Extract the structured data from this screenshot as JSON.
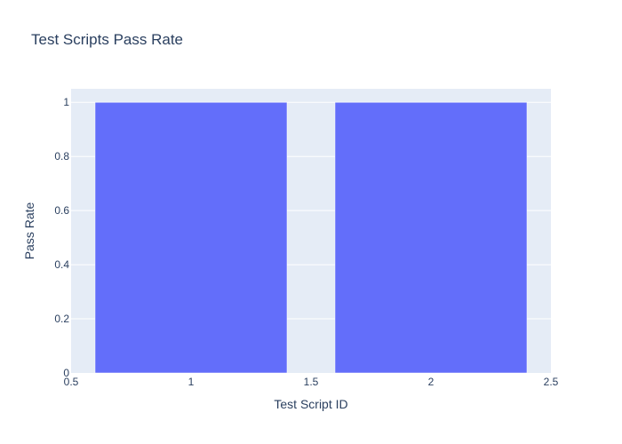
{
  "chart_data": {
    "type": "bar",
    "title": "Test Scripts Pass Rate",
    "xlabel": "Test Script ID",
    "ylabel": "Pass Rate",
    "x": [
      1,
      2
    ],
    "values": [
      1,
      1
    ],
    "bar_width": 0.8,
    "xlim": [
      0.5,
      2.5
    ],
    "ylim": [
      0,
      1.05
    ],
    "x_ticks": [
      0.5,
      1,
      1.5,
      2,
      2.5
    ],
    "x_tick_labels": [
      "0.5",
      "1",
      "1.5",
      "2",
      "2.5"
    ],
    "y_ticks": [
      0,
      0.2,
      0.4,
      0.6,
      0.8,
      1
    ],
    "y_tick_labels": [
      "0",
      "0.2",
      "0.4",
      "0.6",
      "0.8",
      "1"
    ],
    "grid": true,
    "colors": {
      "bar": "#636efa",
      "plot_background": "#e5ecf6",
      "grid": "#ffffff",
      "text": "#2a3f5f"
    }
  }
}
